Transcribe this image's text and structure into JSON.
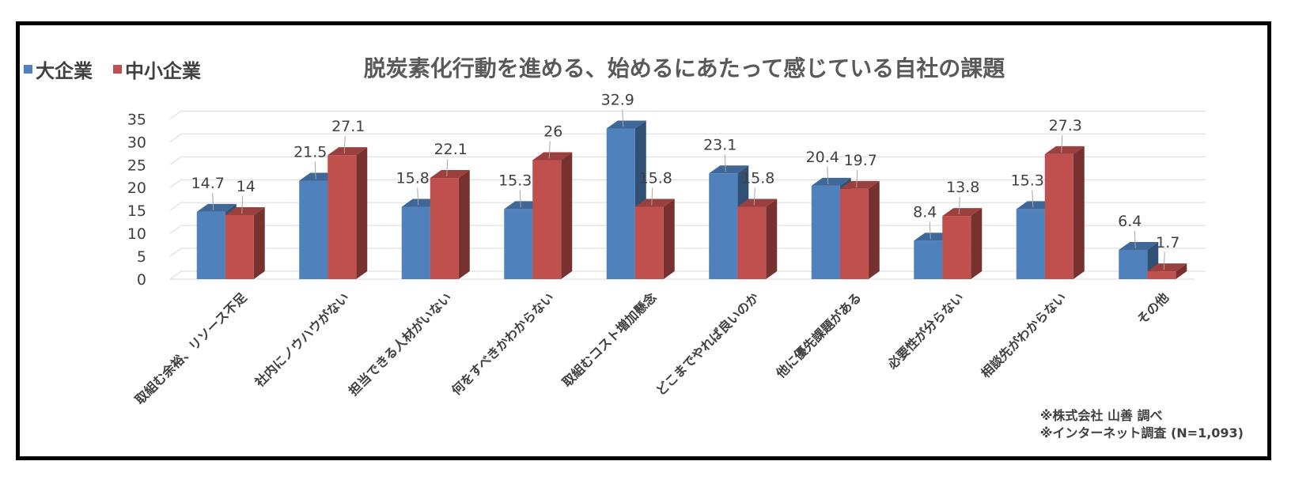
{
  "chart_data": {
    "type": "bar",
    "title": "脱炭素化行動を進める、始めるにあたって感じている自社の課題",
    "categories": [
      "取組む余裕、リソース不足",
      "社内にノウハウがない",
      "担当できる人材がいない",
      "何をすべきかわからない",
      "取組むコスト増加懸念",
      "どこまでやれば良いのか",
      "他に優先課題がある",
      "必要性が分らない",
      "相談先がわからない",
      "その他"
    ],
    "series": [
      {
        "name": "大企業",
        "color": "#4F81BD",
        "values": [
          14.7,
          21.5,
          15.8,
          15.3,
          32.9,
          23.1,
          20.4,
          8.4,
          15.3,
          6.4
        ]
      },
      {
        "name": "中小企業",
        "color": "#C0504D",
        "values": [
          14,
          27.1,
          22.1,
          26,
          15.8,
          15.8,
          19.7,
          13.8,
          27.3,
          1.7
        ]
      }
    ],
    "yticks": [
      0,
      5,
      10,
      15,
      20,
      25,
      30,
      35
    ],
    "ylim": [
      0,
      35
    ],
    "grid": true,
    "legend_position": "top-left",
    "xlabel": "",
    "ylabel": ""
  },
  "notes": [
    "※株式会社 山善 調べ",
    "※インターネット調査 (N=1,093)"
  ]
}
